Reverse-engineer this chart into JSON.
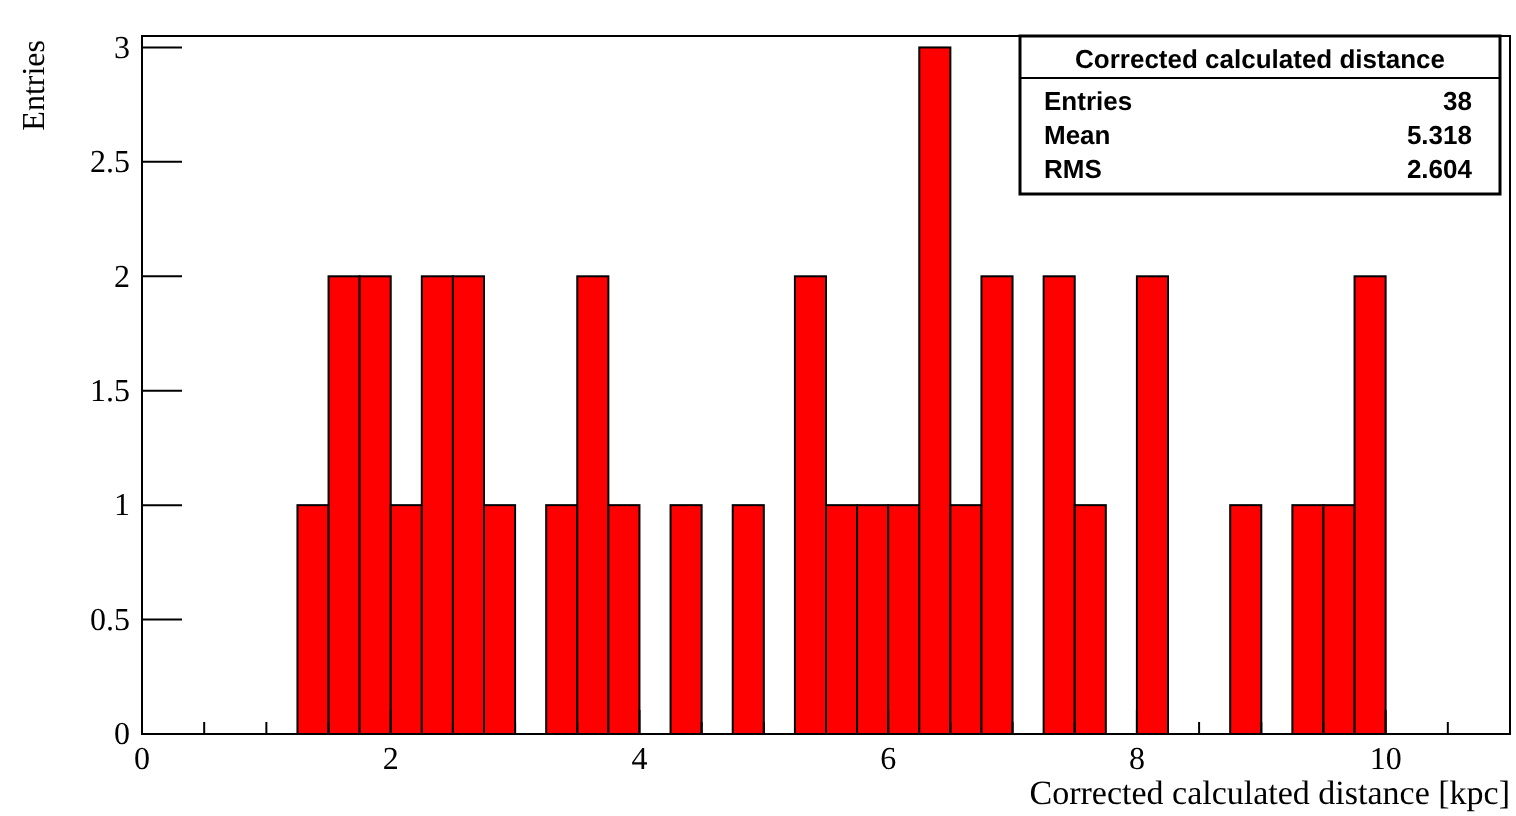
{
  "chart_data": {
    "type": "histogram",
    "title": "Corrected calculated distance",
    "xlabel": "Corrected calculated distance [kpc]",
    "ylabel": "Entries",
    "bins": [
      1.25,
      1.5,
      1.75,
      2,
      2.25,
      2.5,
      2.75,
      3,
      3.25,
      3.5,
      3.75,
      4,
      4.25,
      4.5,
      4.75,
      5,
      5.25,
      5.5,
      5.75,
      6,
      6.25,
      6.5,
      6.75,
      7,
      7.25,
      7.5,
      7.75,
      8,
      8.25,
      8.5,
      8.75,
      9,
      9.25,
      9.5,
      9.75,
      10
    ],
    "values": [
      1,
      2,
      2,
      1,
      2,
      2,
      1,
      0,
      1,
      2,
      1,
      0,
      1,
      0,
      1,
      0,
      2,
      1,
      1,
      1,
      3,
      1,
      2,
      0,
      2,
      1,
      0,
      2,
      0,
      0,
      1,
      0,
      1,
      1,
      2
    ],
    "color": "#ff0000",
    "xlim": [
      0,
      11
    ],
    "ylim": [
      0,
      3.05
    ],
    "xticks": [
      0,
      {
        "value": 0.5,
        "label": null
      },
      {
        "value": 1,
        "label": null
      },
      {
        "value": 1.5,
        "label": null
      },
      2,
      {
        "value": 2.5,
        "label": null
      },
      {
        "value": 3,
        "label": null
      },
      {
        "value": 3.5,
        "label": null
      },
      4,
      {
        "value": 4.5,
        "label": null
      },
      {
        "value": 5,
        "label": null
      },
      {
        "value": 5.5,
        "label": null
      },
      6,
      {
        "value": 6.5,
        "label": null
      },
      {
        "value": 7,
        "label": null
      },
      {
        "value": 7.5,
        "label": null
      },
      8,
      {
        "value": 8.5,
        "label": null
      },
      {
        "value": 9,
        "label": null
      },
      {
        "value": 9.5,
        "label": null
      },
      10,
      {
        "value": 10.5,
        "label": null
      }
    ],
    "yticks": [
      0,
      0.5,
      1,
      1.5,
      2,
      2.5,
      3
    ],
    "annotations": [
      "Entries",
      "38",
      "Mean",
      "5.318",
      "RMS",
      "2.604"
    ],
    "grid": false
  }
}
